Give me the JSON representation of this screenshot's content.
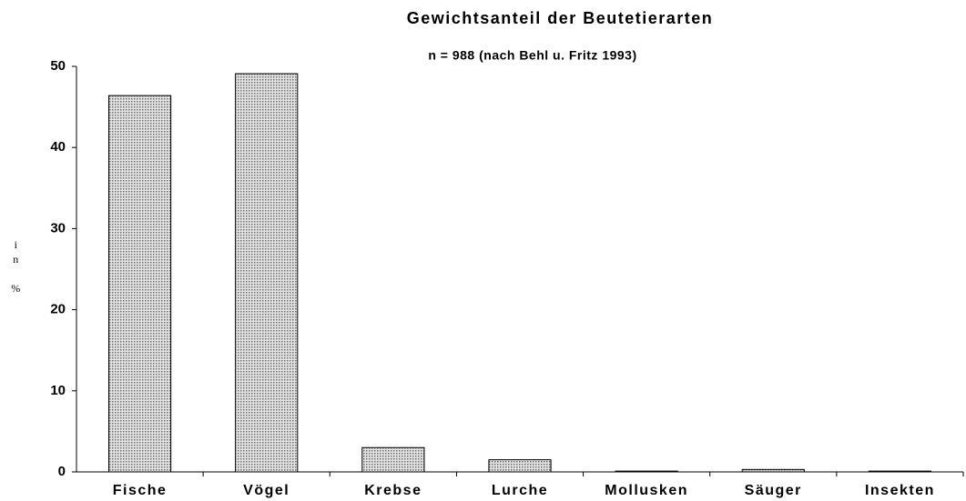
{
  "chart_data": {
    "type": "bar",
    "title": "Gewichtsanteil der  Beutetierarten",
    "subtitle": "n = 988 (nach Behl u. Fritz 1993)",
    "y_label": "in %",
    "categories": [
      "Fische",
      "Vögel",
      "Krebse",
      "Lurche",
      "Mollusken",
      "Säuger",
      "Insekten"
    ],
    "values": [
      46.4,
      49.1,
      3.0,
      1.5,
      0.1,
      0.3,
      0.1
    ],
    "color": "#9a9a9a",
    "ylim": [
      0,
      50
    ],
    "yticks": [
      0,
      10,
      20,
      30,
      40,
      50
    ],
    "grid": false
  }
}
